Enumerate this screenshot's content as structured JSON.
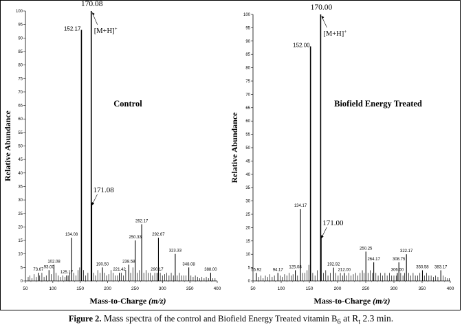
{
  "chart_data": [
    {
      "type": "bar",
      "title": "Control",
      "xlabel": "Mass-to-Charge (m/z)",
      "xlabel_main": "Mass-to-Charge ",
      "xlabel_unit": "(m/z)",
      "ylabel": "Relative Abundance",
      "xlim": [
        50,
        400
      ],
      "ylim": [
        0,
        100
      ],
      "xticks": [
        "50",
        "100",
        "150",
        "200",
        "250",
        "300",
        "350",
        "400"
      ],
      "yticks": [
        "0",
        "5",
        "10",
        "15",
        "20",
        "25",
        "30",
        "35",
        "40",
        "45",
        "50",
        "55",
        "60",
        "65",
        "70",
        "75",
        "80",
        "85",
        "90",
        "95",
        "100"
      ],
      "annotation": "[M+H]",
      "annotation_sup": "+",
      "peaks": [
        {
          "mz": 73.67,
          "y": 3,
          "label": "73.67"
        },
        {
          "mz": 93.0,
          "y": 4,
          "label": "93.00"
        },
        {
          "mz": 102.08,
          "y": 6,
          "label": "102.08"
        },
        {
          "mz": 125.17,
          "y": 2,
          "label": "125.17"
        },
        {
          "mz": 134.08,
          "y": 16,
          "label": "134.08"
        },
        {
          "mz": 152.17,
          "y": 93,
          "label": "152.17"
        },
        {
          "mz": 170.08,
          "y": 100,
          "label": "170.08"
        },
        {
          "mz": 171.08,
          "y": 29,
          "label": "171.08"
        },
        {
          "mz": 190.5,
          "y": 5,
          "label": "190.50"
        },
        {
          "mz": 221.42,
          "y": 3,
          "label": "221.42"
        },
        {
          "mz": 238.58,
          "y": 6,
          "label": "238.58"
        },
        {
          "mz": 250.33,
          "y": 15,
          "label": "250.33"
        },
        {
          "mz": 262.17,
          "y": 21,
          "label": "262.17"
        },
        {
          "mz": 290.17,
          "y": 3,
          "label": "290.17"
        },
        {
          "mz": 292.67,
          "y": 16,
          "label": "292.67"
        },
        {
          "mz": 323.33,
          "y": 10,
          "label": "323.33"
        },
        {
          "mz": 348.08,
          "y": 5,
          "label": "348.08"
        },
        {
          "mz": 388.0,
          "y": 3,
          "label": "388.00"
        }
      ],
      "minor": [
        [
          55,
          1.5
        ],
        [
          58,
          2
        ],
        [
          62,
          1
        ],
        [
          66,
          2.5
        ],
        [
          70,
          1.5
        ],
        [
          76,
          2
        ],
        [
          80,
          3
        ],
        [
          84,
          1.5
        ],
        [
          88,
          2
        ],
        [
          97,
          2.5
        ],
        [
          106,
          3
        ],
        [
          110,
          2
        ],
        [
          114,
          1.5
        ],
        [
          118,
          2
        ],
        [
          122,
          1.5
        ],
        [
          128,
          2
        ],
        [
          131,
          3
        ],
        [
          138,
          3
        ],
        [
          142,
          2
        ],
        [
          146,
          4
        ],
        [
          149,
          5
        ],
        [
          156,
          4
        ],
        [
          160,
          2
        ],
        [
          164,
          3
        ],
        [
          175,
          3
        ],
        [
          178,
          2
        ],
        [
          182,
          4
        ],
        [
          186,
          3
        ],
        [
          194,
          3
        ],
        [
          198,
          2
        ],
        [
          202,
          2.5
        ],
        [
          206,
          4
        ],
        [
          210,
          3
        ],
        [
          214,
          2
        ],
        [
          218,
          2
        ],
        [
          225,
          3
        ],
        [
          229,
          2
        ],
        [
          233,
          4
        ],
        [
          242,
          3
        ],
        [
          246,
          5
        ],
        [
          254,
          3
        ],
        [
          258,
          4
        ],
        [
          266,
          3
        ],
        [
          270,
          4
        ],
        [
          274,
          3
        ],
        [
          278,
          3
        ],
        [
          282,
          2
        ],
        [
          286,
          3
        ],
        [
          296,
          3
        ],
        [
          300,
          2
        ],
        [
          304,
          2.5
        ],
        [
          308,
          3
        ],
        [
          312,
          2
        ],
        [
          316,
          3
        ],
        [
          320,
          2
        ],
        [
          327,
          2
        ],
        [
          331,
          3
        ],
        [
          335,
          2
        ],
        [
          339,
          2
        ],
        [
          343,
          2
        ],
        [
          352,
          2
        ],
        [
          356,
          1.5
        ],
        [
          360,
          2
        ],
        [
          364,
          1.5
        ],
        [
          368,
          1
        ],
        [
          372,
          1.5
        ],
        [
          376,
          1
        ],
        [
          380,
          1.5
        ],
        [
          384,
          1
        ],
        [
          392,
          1
        ],
        [
          396,
          1
        ]
      ]
    },
    {
      "type": "bar",
      "title": "Biofield Energy Treated",
      "xlabel": "Mass-to-Charge (m/z)",
      "xlabel_main": "Mass-to-Charge ",
      "xlabel_unit": "(m/z)",
      "ylabel": "Relative Abundance",
      "xlim": [
        50,
        400
      ],
      "ylim": [
        0,
        100
      ],
      "xticks": [
        "50",
        "100",
        "150",
        "200",
        "250",
        "300",
        "350",
        "400"
      ],
      "yticks": [
        "0",
        "5",
        "10",
        "15",
        "20",
        "25",
        "30",
        "35",
        "40",
        "45",
        "50",
        "55",
        "60",
        "65",
        "70",
        "75",
        "80",
        "85",
        "90",
        "95",
        "100"
      ],
      "annotation": "[M+H]",
      "annotation_sup": "+",
      "peaks": [
        {
          "mz": 55.92,
          "y": 3,
          "label": "55.92"
        },
        {
          "mz": 94.17,
          "y": 3,
          "label": "94.17"
        },
        {
          "mz": 125.08,
          "y": 4,
          "label": "125.08"
        },
        {
          "mz": 134.17,
          "y": 27,
          "label": "134.17"
        },
        {
          "mz": 152.0,
          "y": 88,
          "label": "152.00"
        },
        {
          "mz": 170.0,
          "y": 100,
          "label": "170.00"
        },
        {
          "mz": 171.0,
          "y": 17,
          "label": "171.00"
        },
        {
          "mz": 192.92,
          "y": 5,
          "label": "192.92"
        },
        {
          "mz": 212.0,
          "y": 3,
          "label": "212.00"
        },
        {
          "mz": 250.25,
          "y": 11,
          "label": "250.25"
        },
        {
          "mz": 264.17,
          "y": 7,
          "label": "264.17"
        },
        {
          "mz": 306.0,
          "y": 3,
          "label": "306.00"
        },
        {
          "mz": 308.75,
          "y": 7,
          "label": "308.75"
        },
        {
          "mz": 322.17,
          "y": 10,
          "label": "322.17"
        },
        {
          "mz": 350.58,
          "y": 4,
          "label": "350.58"
        },
        {
          "mz": 383.17,
          "y": 4,
          "label": "383.17"
        }
      ],
      "minor": [
        [
          60,
          1.5
        ],
        [
          64,
          2
        ],
        [
          68,
          1
        ],
        [
          72,
          2
        ],
        [
          76,
          1.5
        ],
        [
          80,
          2.5
        ],
        [
          84,
          1.5
        ],
        [
          88,
          2
        ],
        [
          98,
          2
        ],
        [
          102,
          1.5
        ],
        [
          106,
          2.5
        ],
        [
          110,
          2
        ],
        [
          114,
          3
        ],
        [
          118,
          2
        ],
        [
          121,
          2.5
        ],
        [
          129,
          2
        ],
        [
          138,
          3
        ],
        [
          142,
          3
        ],
        [
          146,
          4
        ],
        [
          149,
          6
        ],
        [
          156,
          3
        ],
        [
          160,
          2
        ],
        [
          164,
          4
        ],
        [
          175,
          3
        ],
        [
          179,
          4
        ],
        [
          183,
          2
        ],
        [
          187,
          3
        ],
        [
          197,
          3
        ],
        [
          201,
          2
        ],
        [
          205,
          3
        ],
        [
          209,
          2
        ],
        [
          216,
          2
        ],
        [
          220,
          3
        ],
        [
          224,
          2
        ],
        [
          228,
          2.5
        ],
        [
          232,
          3
        ],
        [
          236,
          2
        ],
        [
          240,
          3
        ],
        [
          244,
          4
        ],
        [
          247,
          3
        ],
        [
          254,
          3
        ],
        [
          258,
          4
        ],
        [
          262,
          3
        ],
        [
          268,
          3
        ],
        [
          272,
          2
        ],
        [
          276,
          3
        ],
        [
          280,
          2
        ],
        [
          284,
          3
        ],
        [
          288,
          2
        ],
        [
          292,
          3
        ],
        [
          296,
          2
        ],
        [
          300,
          2
        ],
        [
          304,
          2
        ],
        [
          312,
          3
        ],
        [
          316,
          2
        ],
        [
          319,
          3
        ],
        [
          326,
          3
        ],
        [
          330,
          2
        ],
        [
          334,
          3
        ],
        [
          338,
          2
        ],
        [
          342,
          2
        ],
        [
          346,
          3
        ],
        [
          354,
          2
        ],
        [
          358,
          3
        ],
        [
          362,
          2
        ],
        [
          366,
          2
        ],
        [
          370,
          1.5
        ],
        [
          374,
          2
        ],
        [
          378,
          1.5
        ],
        [
          387,
          2
        ],
        [
          391,
          1.5
        ],
        [
          395,
          1
        ],
        [
          398,
          1
        ]
      ]
    }
  ],
  "caption": {
    "figure_label": "Figure 2.",
    "text_a": " Mass spectra of ",
    "text_b": "the control and Biofield Energy Treated vitamin B",
    "b_sub": "6",
    "text_c": " at R",
    "r_sub": "t",
    "text_d": " 2.3 min."
  }
}
